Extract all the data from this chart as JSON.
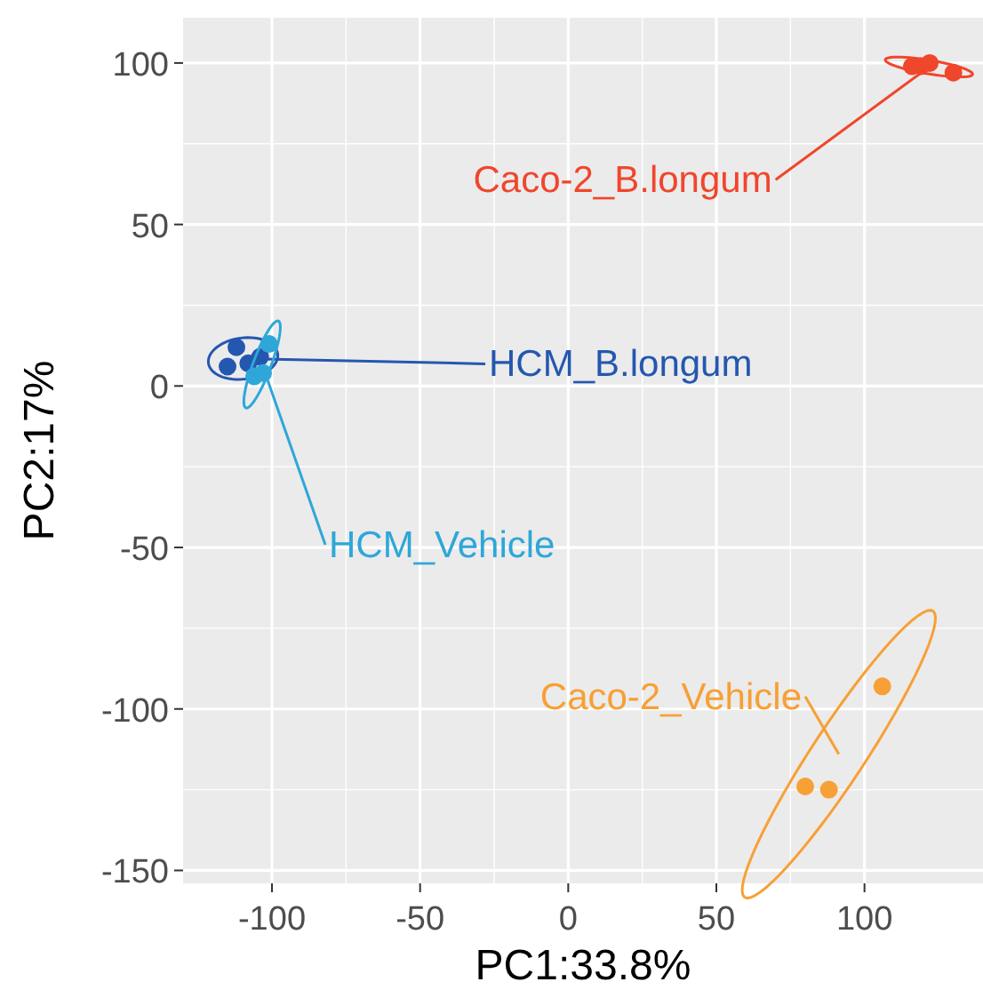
{
  "chart_data": {
    "type": "scatter",
    "xlabel": "PC1:33.8%",
    "ylabel": "PC2:17%",
    "xlim": [
      -130,
      140
    ],
    "ylim": [
      -154,
      114
    ],
    "xticks": [
      -100,
      -50,
      0,
      50,
      100
    ],
    "yticks": [
      -150,
      -100,
      -50,
      0,
      50,
      100
    ],
    "grid": true,
    "marker": "circle",
    "series": [
      {
        "name": "Caco-2_B.longum",
        "color": "#f0462c",
        "x": [
          116,
          119,
          122,
          130
        ],
        "values": [
          99,
          99,
          100,
          97
        ]
      },
      {
        "name": "HCM_B.longum",
        "color": "#2457b0",
        "x": [
          -112,
          -115,
          -104,
          -108
        ],
        "values": [
          12,
          6,
          9,
          7
        ]
      },
      {
        "name": "HCM_Vehicle",
        "color": "#2ea7d8",
        "x": [
          -101,
          -106,
          -103
        ],
        "values": [
          13,
          3,
          4
        ]
      },
      {
        "name": "Caco-2_Vehicle",
        "color": "#f7a035",
        "x": [
          80,
          88,
          106
        ],
        "values": [
          -124,
          -125,
          -93
        ]
      }
    ]
  }
}
